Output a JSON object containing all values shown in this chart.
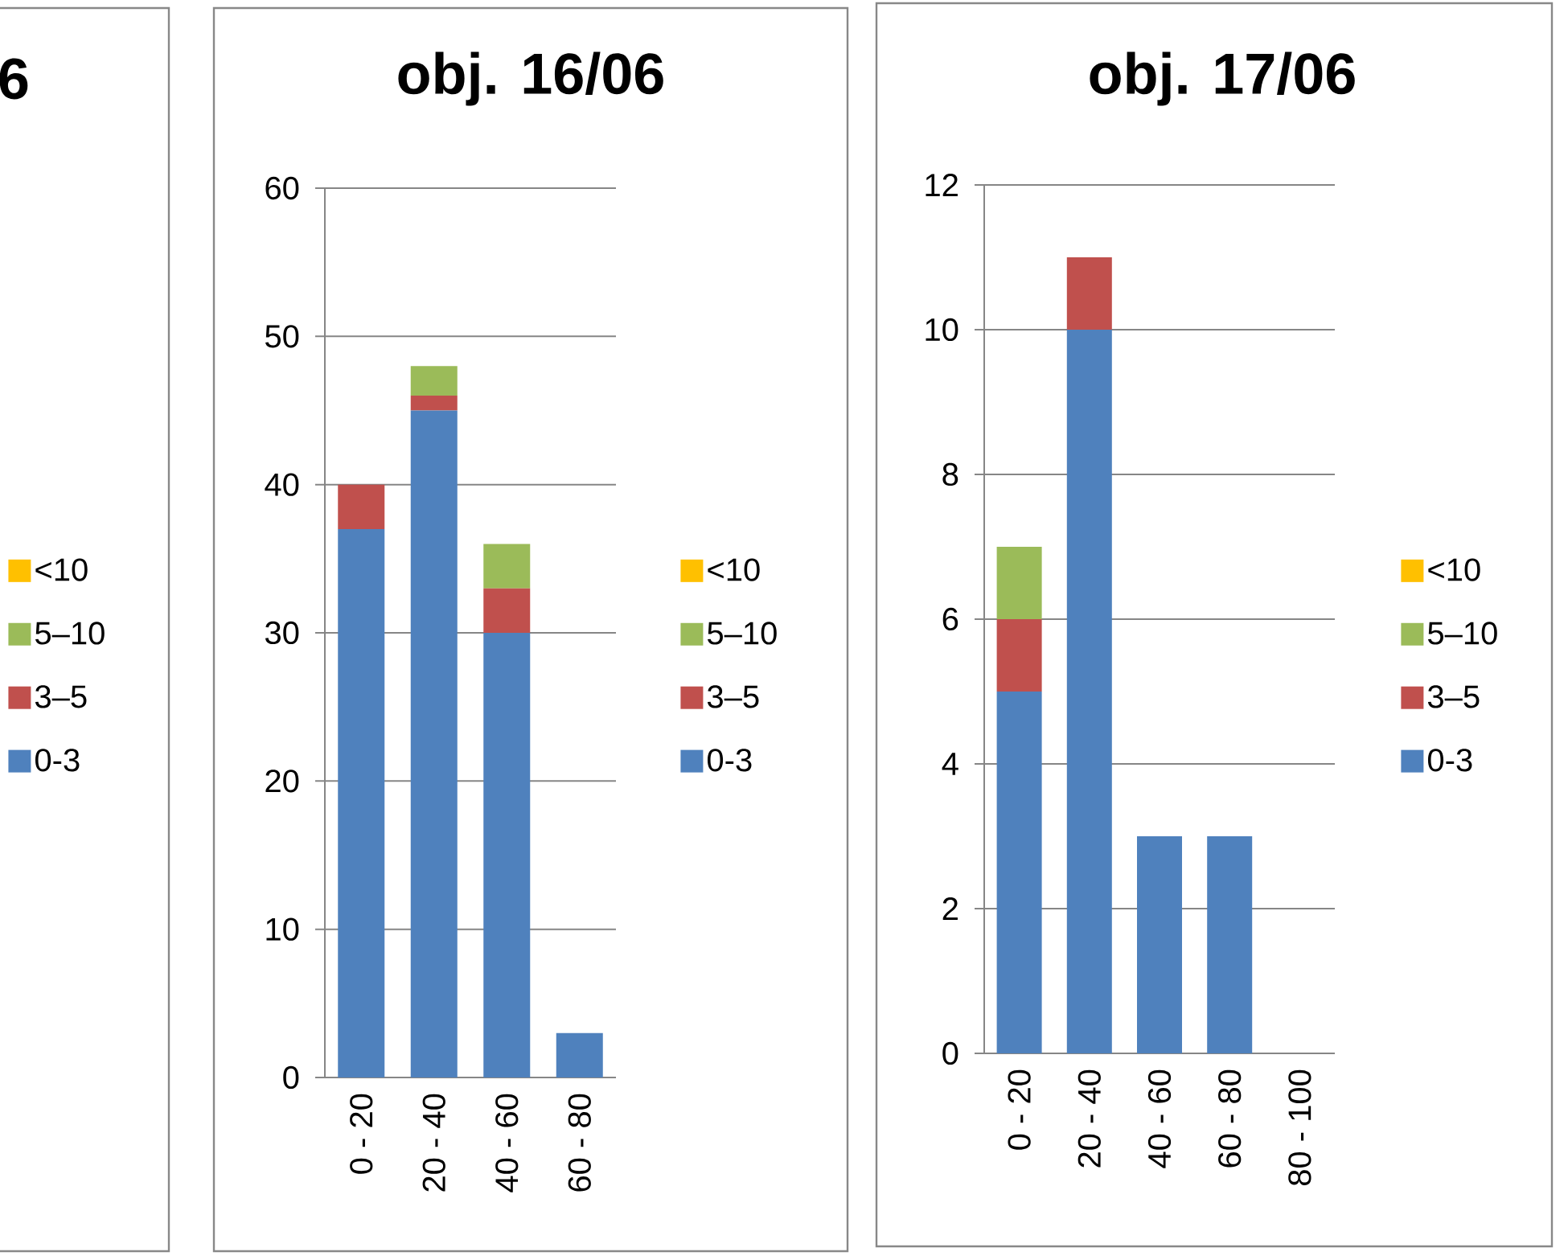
{
  "chart_data": [
    {
      "type": "other",
      "title": "6",
      "legend": "right",
      "series": [
        {
          "name": "0-3",
          "color": "#4f81bd"
        },
        {
          "name": "3–5",
          "color": "#c0504d"
        },
        {
          "name": "5–10",
          "color": "#9bbb59"
        },
        {
          "name": "<10",
          "color": "#ffc000"
        }
      ]
    },
    {
      "type": "bar",
      "title": "obj. 16/06",
      "stacked": true,
      "legend": "right",
      "grid": "y",
      "categories": [
        "0 - 20",
        "20 - 40",
        "40 - 60",
        "60 - 80"
      ],
      "ylim": [
        0,
        60
      ],
      "yticks": [
        0,
        10,
        20,
        30,
        40,
        50,
        60
      ],
      "series": [
        {
          "name": "0-3",
          "color": "#4f81bd",
          "values": [
            37,
            45,
            30,
            3
          ]
        },
        {
          "name": "3–5",
          "color": "#c0504d",
          "values": [
            3,
            1,
            3,
            0
          ]
        },
        {
          "name": "5–10",
          "color": "#9bbb59",
          "values": [
            0,
            2,
            3,
            0
          ]
        },
        {
          "name": "<10",
          "color": "#ffc000",
          "values": [
            0,
            0,
            0,
            0
          ]
        }
      ]
    },
    {
      "type": "bar",
      "title": "obj. 17/06",
      "stacked": true,
      "legend": "right",
      "grid": "y",
      "categories": [
        "0 - 20",
        "20 - 40",
        "40 - 60",
        "60 - 80",
        "80 - 100"
      ],
      "ylim": [
        0,
        12
      ],
      "yticks": [
        0,
        2,
        4,
        6,
        8,
        10,
        12
      ],
      "series": [
        {
          "name": "0-3",
          "color": "#4f81bd",
          "values": [
            5,
            10,
            3,
            3,
            0
          ]
        },
        {
          "name": "3–5",
          "color": "#c0504d",
          "values": [
            1,
            1,
            0,
            0,
            0
          ]
        },
        {
          "name": "5–10",
          "color": "#9bbb59",
          "values": [
            1,
            0,
            0,
            0,
            0
          ]
        },
        {
          "name": "<10",
          "color": "#ffc000",
          "values": [
            0,
            0,
            0,
            0,
            0
          ]
        }
      ]
    }
  ]
}
